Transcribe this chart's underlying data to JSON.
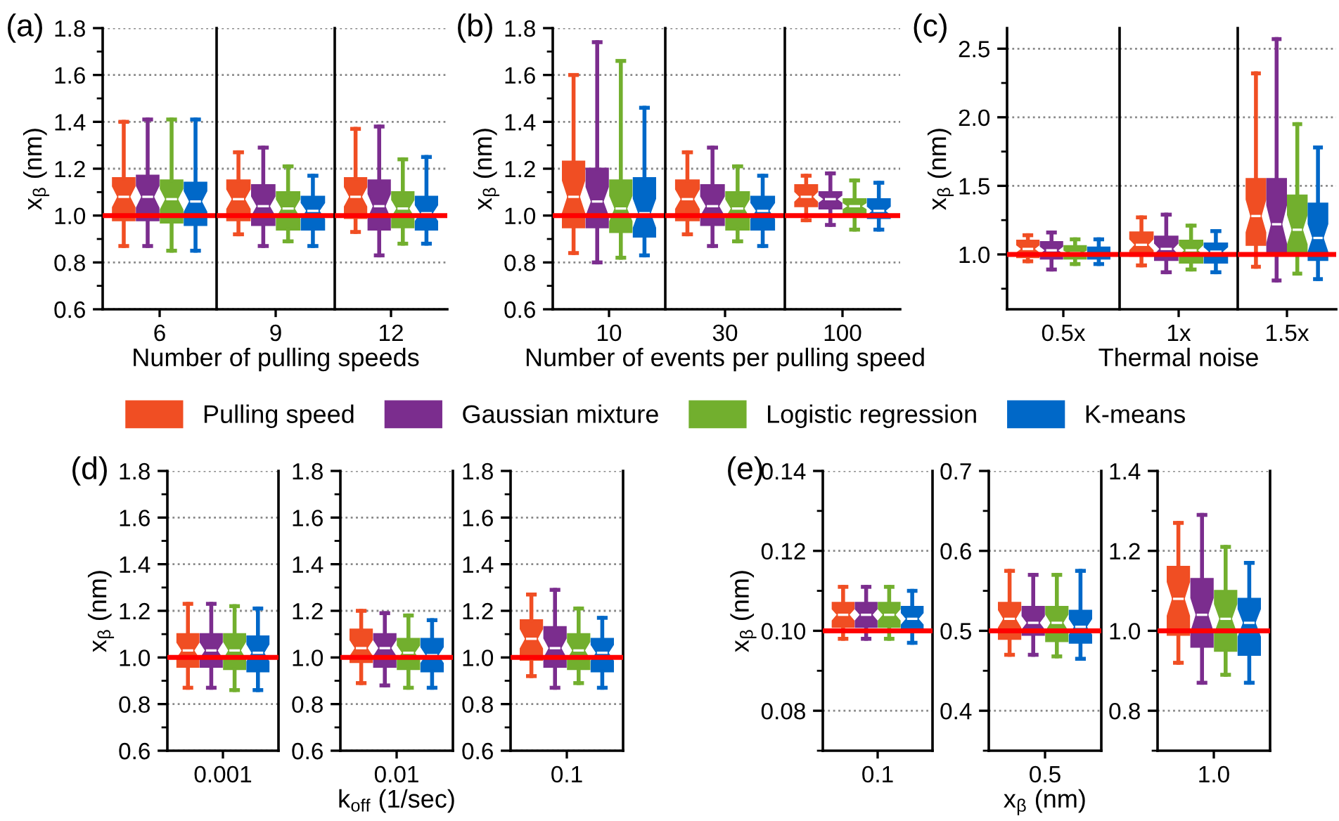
{
  "chart_data": [
    {
      "type": "box",
      "title": "(a)",
      "ylabel": "x$_{β}$ (nm)",
      "categories": [
        "6"
      ],
      "ylim": [
        0.6,
        1.8
      ],
      "yticks": [
        0.6,
        0.8,
        {
          "value": 1,
          "label": "1.0"
        },
        1.2,
        1.4,
        1.6,
        1.8
      ],
      "grid": "y",
      "legend": "bottom",
      "ref_lines": [
        {
          "axis": "y",
          "value": 1.0,
          "color": "#ff0000"
        }
      ],
      "series": [
        {
          "name": "Pulling speed",
          "color": "#f04e23",
          "boxes": [
            {
              "low": 0.87,
              "q1": 0.98,
              "median": 1.08,
              "q3": 1.16,
              "high": 1.4
            }
          ]
        },
        {
          "name": "Gaussian mixture",
          "color": "#7b2d8e",
          "boxes": [
            {
              "low": 0.87,
              "q1": 0.98,
              "median": 1.08,
              "q3": 1.17,
              "high": 1.41
            }
          ]
        },
        {
          "name": "Logistic regression",
          "color": "#72af2e",
          "boxes": [
            {
              "low": 0.85,
              "q1": 0.97,
              "median": 1.07,
              "q3": 1.15,
              "high": 1.41
            }
          ]
        },
        {
          "name": "K-means",
          "color": "#0068c8",
          "boxes": [
            {
              "low": 0.85,
              "q1": 0.96,
              "median": 1.06,
              "q3": 1.14,
              "high": 1.41
            }
          ]
        }
      ]
    },
    {
      "type": "box",
      "xlabel": "Number of pulling speeds",
      "categories": [
        "9"
      ],
      "ylim": [
        0.6,
        1.8
      ],
      "yticks": [
        0.6,
        0.8,
        1.0,
        1.2,
        1.4,
        1.6,
        1.8
      ],
      "tick_labels": "x",
      "grid": "y",
      "ref_lines": [
        {
          "axis": "y",
          "value": 1.0,
          "color": "#ff0000"
        }
      ],
      "series": [
        {
          "color": "#f04e23",
          "boxes": [
            {
              "low": 0.92,
              "q1": 0.98,
              "median": 1.07,
              "q3": 1.15,
              "high": 1.27
            }
          ]
        },
        {
          "color": "#7b2d8e",
          "boxes": [
            {
              "low": 0.87,
              "q1": 0.96,
              "median": 1.04,
              "q3": 1.13,
              "high": 1.29
            }
          ]
        },
        {
          "color": "#72af2e",
          "boxes": [
            {
              "low": 0.89,
              "q1": 0.94,
              "median": 1.03,
              "q3": 1.1,
              "high": 1.21
            }
          ]
        },
        {
          "color": "#0068c8",
          "boxes": [
            {
              "low": 0.87,
              "q1": 0.94,
              "median": 1.02,
              "q3": 1.08,
              "high": 1.17
            }
          ]
        }
      ]
    },
    {
      "type": "box",
      "categories": [
        "12"
      ],
      "ylim": [
        0.6,
        1.8
      ],
      "yticks": [
        0.6,
        0.8,
        1.0,
        1.2,
        1.4,
        1.6,
        1.8
      ],
      "tick_labels": "x",
      "grid": "y",
      "ref_lines": [
        {
          "axis": "y",
          "value": 1.0,
          "color": "#ff0000"
        }
      ],
      "series": [
        {
          "color": "#f04e23",
          "boxes": [
            {
              "low": 0.93,
              "q1": 0.99,
              "median": 1.08,
              "q3": 1.16,
              "high": 1.37
            }
          ]
        },
        {
          "color": "#7b2d8e",
          "boxes": [
            {
              "low": 0.83,
              "q1": 0.94,
              "median": 1.04,
              "q3": 1.15,
              "high": 1.38
            }
          ]
        },
        {
          "color": "#72af2e",
          "boxes": [
            {
              "low": 0.88,
              "q1": 0.95,
              "median": 1.03,
              "q3": 1.1,
              "high": 1.24
            }
          ]
        },
        {
          "color": "#0068c8",
          "boxes": [
            {
              "low": 0.88,
              "q1": 0.94,
              "median": 1.01,
              "q3": 1.08,
              "high": 1.25
            }
          ]
        }
      ]
    },
    {
      "type": "box",
      "title": "(b)",
      "ylabel": "x$_{β}$ (nm)",
      "categories": [
        "10"
      ],
      "ylim": [
        0.6,
        1.8
      ],
      "yticks": [
        0.6,
        0.8,
        {
          "value": 1,
          "label": "1.0"
        },
        1.2,
        1.4,
        1.6,
        1.8
      ],
      "grid": "y",
      "ref_lines": [
        {
          "axis": "y",
          "value": 1.0,
          "color": "#ff0000"
        }
      ],
      "series": [
        {
          "color": "#f04e23",
          "boxes": [
            {
              "low": 0.84,
              "q1": 0.95,
              "median": 1.08,
              "q3": 1.23,
              "high": 1.6
            }
          ]
        },
        {
          "color": "#7b2d8e",
          "boxes": [
            {
              "low": 0.8,
              "q1": 0.95,
              "median": 1.06,
              "q3": 1.2,
              "high": 1.74
            }
          ]
        },
        {
          "color": "#72af2e",
          "boxes": [
            {
              "low": 0.82,
              "q1": 0.93,
              "median": 1.03,
              "q3": 1.15,
              "high": 1.66
            }
          ]
        },
        {
          "color": "#0068c8",
          "boxes": [
            {
              "low": 0.83,
              "q1": 0.91,
              "median": 1.01,
              "q3": 1.16,
              "high": 1.46
            }
          ]
        }
      ]
    },
    {
      "type": "box",
      "xlabel": "Number of events per pulling speed",
      "categories": [
        "30"
      ],
      "ylim": [
        0.6,
        1.8
      ],
      "yticks": [
        0.6,
        0.8,
        1.0,
        1.2,
        1.4,
        1.6,
        1.8
      ],
      "tick_labels": "x",
      "grid": "y",
      "ref_lines": [
        {
          "axis": "y",
          "value": 1.0,
          "color": "#ff0000"
        }
      ],
      "series": [
        {
          "color": "#f04e23",
          "boxes": [
            {
              "low": 0.92,
              "q1": 0.98,
              "median": 1.07,
              "q3": 1.15,
              "high": 1.27
            }
          ]
        },
        {
          "color": "#7b2d8e",
          "boxes": [
            {
              "low": 0.87,
              "q1": 0.96,
              "median": 1.04,
              "q3": 1.13,
              "high": 1.29
            }
          ]
        },
        {
          "color": "#72af2e",
          "boxes": [
            {
              "low": 0.89,
              "q1": 0.94,
              "median": 1.03,
              "q3": 1.1,
              "high": 1.21
            }
          ]
        },
        {
          "color": "#0068c8",
          "boxes": [
            {
              "low": 0.87,
              "q1": 0.94,
              "median": 1.02,
              "q3": 1.08,
              "high": 1.17
            }
          ]
        }
      ]
    },
    {
      "type": "box",
      "categories": [
        "100"
      ],
      "ylim": [
        0.6,
        1.8
      ],
      "yticks": [
        0.6,
        0.8,
        1.0,
        1.2,
        1.4,
        1.6,
        1.8
      ],
      "tick_labels": "x",
      "grid": "y",
      "ref_lines": [
        {
          "axis": "y",
          "value": 1.0,
          "color": "#ff0000"
        }
      ],
      "series": [
        {
          "color": "#f04e23",
          "boxes": [
            {
              "low": 0.98,
              "q1": 1.04,
              "median": 1.08,
              "q3": 1.13,
              "high": 1.17
            }
          ]
        },
        {
          "color": "#7b2d8e",
          "boxes": [
            {
              "low": 0.96,
              "q1": 1.03,
              "median": 1.07,
              "q3": 1.1,
              "high": 1.18
            }
          ]
        },
        {
          "color": "#72af2e",
          "boxes": [
            {
              "low": 0.94,
              "q1": 1.01,
              "median": 1.04,
              "q3": 1.07,
              "high": 1.15
            }
          ]
        },
        {
          "color": "#0068c8",
          "boxes": [
            {
              "low": 0.94,
              "q1": 0.99,
              "median": 1.02,
              "q3": 1.07,
              "high": 1.14
            }
          ]
        }
      ]
    },
    {
      "type": "box",
      "title": "(c)",
      "ylabel": "x$_{β}$ (nm)",
      "categories": [
        "0.5x"
      ],
      "ylim": [
        0.6,
        2.65
      ],
      "yticks": [
        {
          "value": 1,
          "label": "1.0"
        },
        1.5,
        {
          "value": 2,
          "label": "2.0"
        },
        2.5
      ],
      "grid": "y",
      "ref_lines": [
        {
          "axis": "y",
          "value": 1.0,
          "color": "#ff0000"
        }
      ],
      "series": [
        {
          "color": "#f04e23",
          "boxes": [
            {
              "low": 0.95,
              "q1": 0.98,
              "median": 1.04,
              "q3": 1.1,
              "high": 1.14
            }
          ]
        },
        {
          "color": "#7b2d8e",
          "boxes": [
            {
              "low": 0.89,
              "q1": 0.97,
              "median": 1.03,
              "q3": 1.09,
              "high": 1.16
            }
          ]
        },
        {
          "color": "#72af2e",
          "boxes": [
            {
              "low": 0.93,
              "q1": 0.97,
              "median": 1.01,
              "q3": 1.06,
              "high": 1.11
            }
          ]
        },
        {
          "color": "#0068c8",
          "boxes": [
            {
              "low": 0.93,
              "q1": 0.97,
              "median": 1.0,
              "q3": 1.05,
              "high": 1.11
            }
          ]
        }
      ]
    },
    {
      "type": "box",
      "xlabel": "Thermal noise",
      "categories": [
        "1x"
      ],
      "ylim": [
        0.6,
        2.65
      ],
      "yticks": [
        1.0,
        1.5,
        2.0,
        2.5
      ],
      "tick_labels": "x",
      "grid": "y",
      "ref_lines": [
        {
          "axis": "y",
          "value": 1.0,
          "color": "#ff0000"
        }
      ],
      "series": [
        {
          "color": "#f04e23",
          "boxes": [
            {
              "low": 0.92,
              "q1": 0.99,
              "median": 1.07,
              "q3": 1.16,
              "high": 1.27
            }
          ]
        },
        {
          "color": "#7b2d8e",
          "boxes": [
            {
              "low": 0.87,
              "q1": 0.96,
              "median": 1.04,
              "q3": 1.13,
              "high": 1.29
            }
          ]
        },
        {
          "color": "#72af2e",
          "boxes": [
            {
              "low": 0.89,
              "q1": 0.94,
              "median": 1.03,
              "q3": 1.1,
              "high": 1.21
            }
          ]
        },
        {
          "color": "#0068c8",
          "boxes": [
            {
              "low": 0.87,
              "q1": 0.94,
              "median": 1.02,
              "q3": 1.08,
              "high": 1.17
            }
          ]
        }
      ]
    },
    {
      "type": "box",
      "categories": [
        "1.5x"
      ],
      "ylim": [
        0.6,
        2.65
      ],
      "yticks": [
        1.0,
        1.5,
        2.0,
        2.5
      ],
      "tick_labels": "x",
      "grid": "y",
      "ref_lines": [
        {
          "axis": "y",
          "value": 1.0,
          "color": "#ff0000"
        }
      ],
      "series": [
        {
          "color": "#f04e23",
          "boxes": [
            {
              "low": 0.91,
              "q1": 1.07,
              "median": 1.28,
              "q3": 1.55,
              "high": 2.32
            }
          ]
        },
        {
          "color": "#7b2d8e",
          "boxes": [
            {
              "low": 0.81,
              "q1": 1.0,
              "median": 1.22,
              "q3": 1.55,
              "high": 2.57
            }
          ]
        },
        {
          "color": "#72af2e",
          "boxes": [
            {
              "low": 0.86,
              "q1": 1.0,
              "median": 1.18,
              "q3": 1.43,
              "high": 1.95
            }
          ]
        },
        {
          "color": "#0068c8",
          "boxes": [
            {
              "low": 0.82,
              "q1": 0.96,
              "median": 1.12,
              "q3": 1.37,
              "high": 1.78
            }
          ]
        }
      ]
    },
    {
      "type": "box",
      "title": "(d)",
      "ylabel": "x$_{β}$ (nm)",
      "categories": [
        "0.001"
      ],
      "ylim": [
        0.6,
        1.8
      ],
      "yticks": [
        0.6,
        0.8,
        {
          "value": 1,
          "label": "1.0"
        },
        1.2,
        1.4,
        1.6,
        1.8
      ],
      "grid": "y",
      "ref_lines": [
        {
          "axis": "y",
          "value": 1.0,
          "color": "#ff0000"
        }
      ],
      "series": [
        {
          "color": "#f04e23",
          "boxes": [
            {
              "low": 0.87,
              "q1": 0.96,
              "median": 1.03,
              "q3": 1.1,
              "high": 1.23
            }
          ]
        },
        {
          "color": "#7b2d8e",
          "boxes": [
            {
              "low": 0.87,
              "q1": 0.96,
              "median": 1.03,
              "q3": 1.1,
              "high": 1.23
            }
          ]
        },
        {
          "color": "#72af2e",
          "boxes": [
            {
              "low": 0.86,
              "q1": 0.95,
              "median": 1.03,
              "q3": 1.1,
              "high": 1.22
            }
          ]
        },
        {
          "color": "#0068c8",
          "boxes": [
            {
              "low": 0.86,
              "q1": 0.94,
              "median": 1.02,
              "q3": 1.09,
              "high": 1.21
            }
          ]
        }
      ]
    },
    {
      "type": "box",
      "xlabel": "k$_{off}$ (1/sec)",
      "categories": [
        "0.01"
      ],
      "ylim": [
        0.6,
        1.8
      ],
      "yticks": [
        0.6,
        0.8,
        {
          "value": 1,
          "label": "1.0"
        },
        1.2,
        1.4,
        1.6,
        1.8
      ],
      "grid": "y",
      "ref_lines": [
        {
          "axis": "y",
          "value": 1.0,
          "color": "#ff0000"
        }
      ],
      "series": [
        {
          "color": "#f04e23",
          "boxes": [
            {
              "low": 0.89,
              "q1": 0.98,
              "median": 1.04,
              "q3": 1.12,
              "high": 1.2
            }
          ]
        },
        {
          "color": "#7b2d8e",
          "boxes": [
            {
              "low": 0.88,
              "q1": 0.96,
              "median": 1.04,
              "q3": 1.1,
              "high": 1.19
            }
          ]
        },
        {
          "color": "#72af2e",
          "boxes": [
            {
              "low": 0.87,
              "q1": 0.95,
              "median": 1.02,
              "q3": 1.08,
              "high": 1.18
            }
          ]
        },
        {
          "color": "#0068c8",
          "boxes": [
            {
              "low": 0.87,
              "q1": 0.94,
              "median": 1.01,
              "q3": 1.08,
              "high": 1.16
            }
          ]
        }
      ]
    },
    {
      "type": "box",
      "categories": [
        "0.1"
      ],
      "ylim": [
        0.6,
        1.8
      ],
      "yticks": [
        0.6,
        0.8,
        {
          "value": 1,
          "label": "1.0"
        },
        1.2,
        1.4,
        1.6,
        1.8
      ],
      "grid": "y",
      "ref_lines": [
        {
          "axis": "y",
          "value": 1.0,
          "color": "#ff0000"
        }
      ],
      "series": [
        {
          "color": "#f04e23",
          "boxes": [
            {
              "low": 0.92,
              "q1": 0.99,
              "median": 1.08,
              "q3": 1.16,
              "high": 1.27
            }
          ]
        },
        {
          "color": "#7b2d8e",
          "boxes": [
            {
              "low": 0.87,
              "q1": 0.96,
              "median": 1.04,
              "q3": 1.13,
              "high": 1.29
            }
          ]
        },
        {
          "color": "#72af2e",
          "boxes": [
            {
              "low": 0.89,
              "q1": 0.95,
              "median": 1.03,
              "q3": 1.1,
              "high": 1.21
            }
          ]
        },
        {
          "color": "#0068c8",
          "boxes": [
            {
              "low": 0.87,
              "q1": 0.94,
              "median": 1.02,
              "q3": 1.08,
              "high": 1.17
            }
          ]
        }
      ]
    },
    {
      "type": "box",
      "title": "(e)",
      "ylabel": "x$_{β}$ (nm)",
      "categories": [
        "0.1"
      ],
      "ylim": [
        0.07,
        0.14
      ],
      "yticks": [
        {
          "value": 0.08,
          "label": "0.08"
        },
        {
          "value": 0.1,
          "label": "0.10"
        },
        {
          "value": 0.12,
          "label": "0.12"
        },
        {
          "value": 0.14,
          "label": "0.14"
        }
      ],
      "grid": "y",
      "ref_lines": [
        {
          "axis": "y",
          "value": 0.1,
          "color": "#ff0000"
        }
      ],
      "series": [
        {
          "color": "#f04e23",
          "boxes": [
            {
              "low": 0.098,
              "q1": 0.101,
              "median": 0.104,
              "q3": 0.107,
              "high": 0.111
            }
          ]
        },
        {
          "color": "#7b2d8e",
          "boxes": [
            {
              "low": 0.098,
              "q1": 0.101,
              "median": 0.104,
              "q3": 0.107,
              "high": 0.111
            }
          ]
        },
        {
          "color": "#72af2e",
          "boxes": [
            {
              "low": 0.098,
              "q1": 0.101,
              "median": 0.104,
              "q3": 0.107,
              "high": 0.111
            }
          ]
        },
        {
          "color": "#0068c8",
          "boxes": [
            {
              "low": 0.097,
              "q1": 0.1,
              "median": 0.103,
              "q3": 0.106,
              "high": 0.11
            }
          ]
        }
      ]
    },
    {
      "type": "box",
      "xlabel": "x$_{β}$ (nm)",
      "categories": [
        "0.5"
      ],
      "ylim": [
        0.35,
        0.7
      ],
      "yticks": [
        0.4,
        0.5,
        0.6,
        0.7
      ],
      "grid": "y",
      "ref_lines": [
        {
          "axis": "y",
          "value": 0.5,
          "color": "#ff0000"
        }
      ],
      "series": [
        {
          "color": "#f04e23",
          "boxes": [
            {
              "low": 0.47,
              "q1": 0.49,
              "median": 0.515,
              "q3": 0.535,
              "high": 0.575
            }
          ]
        },
        {
          "color": "#7b2d8e",
          "boxes": [
            {
              "low": 0.47,
              "q1": 0.495,
              "median": 0.51,
              "q3": 0.53,
              "high": 0.57
            }
          ]
        },
        {
          "color": "#72af2e",
          "boxes": [
            {
              "low": 0.468,
              "q1": 0.487,
              "median": 0.51,
              "q3": 0.53,
              "high": 0.57
            }
          ]
        },
        {
          "color": "#0068c8",
          "boxes": [
            {
              "low": 0.465,
              "q1": 0.485,
              "median": 0.505,
              "q3": 0.525,
              "high": 0.575
            }
          ]
        }
      ]
    },
    {
      "type": "box",
      "categories": [
        "1.0"
      ],
      "ylim": [
        0.7,
        1.4
      ],
      "yticks": [
        0.8,
        {
          "value": 1,
          "label": "1.0"
        },
        1.2,
        1.4
      ],
      "grid": "y",
      "ref_lines": [
        {
          "axis": "y",
          "value": 1.0,
          "color": "#ff0000"
        }
      ],
      "series": [
        {
          "color": "#f04e23",
          "boxes": [
            {
              "low": 0.92,
              "q1": 0.99,
              "median": 1.08,
              "q3": 1.16,
              "high": 1.27
            }
          ]
        },
        {
          "color": "#7b2d8e",
          "boxes": [
            {
              "low": 0.87,
              "q1": 0.96,
              "median": 1.04,
              "q3": 1.13,
              "high": 1.29
            }
          ]
        },
        {
          "color": "#72af2e",
          "boxes": [
            {
              "low": 0.89,
              "q1": 0.95,
              "median": 1.03,
              "q3": 1.1,
              "high": 1.21
            }
          ]
        },
        {
          "color": "#0068c8",
          "boxes": [
            {
              "low": 0.87,
              "q1": 0.94,
              "median": 1.02,
              "q3": 1.08,
              "high": 1.17
            }
          ]
        }
      ]
    }
  ]
}
